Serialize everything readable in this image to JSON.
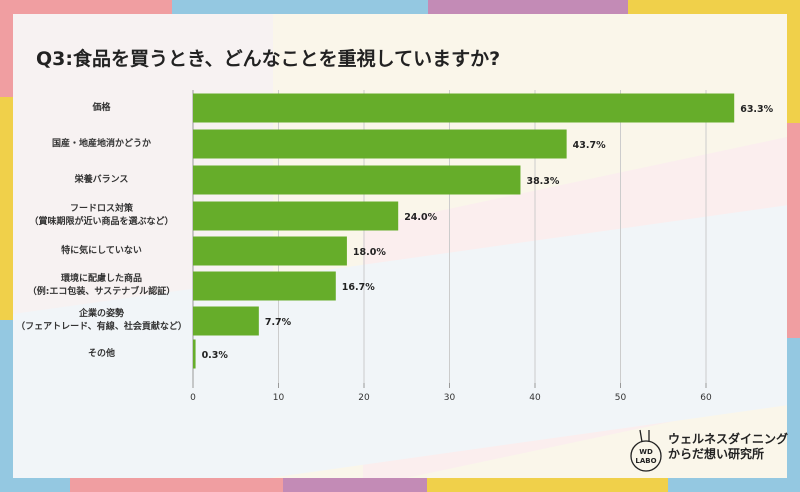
{
  "title": "Q3:食品を買うとき、どんなことを重視していますか?",
  "colors": {
    "bar": "#66ad2a",
    "pink": "#f09ea1",
    "blue": "#94c8e1",
    "purple": "#c38bb6",
    "yellow": "#f0d04a"
  },
  "chart_data": {
    "type": "bar",
    "orientation": "horizontal",
    "categories": [
      "価格",
      "国産・地産地消かどうか",
      "栄養バランス",
      "フードロス対策\n（賞味期限が近い商品を選ぶなど）",
      "特に気にしていない",
      "環境に配慮した商品\n（例:エコ包装、サステナブル認証）",
      "企業の姿勢\n（フェアトレード、有線、社会貢献など）",
      "その他"
    ],
    "values": [
      63.3,
      43.7,
      38.3,
      24.0,
      18.0,
      16.7,
      7.7,
      0.3
    ],
    "data_labels": [
      "63.3%",
      "43.7%",
      "38.3%",
      "24.0%",
      "18.0%",
      "16.7%",
      "7.7%",
      "0.3%"
    ],
    "xlim": [
      0,
      65
    ],
    "xticks": [
      "0",
      "10",
      "20",
      "30",
      "40",
      "50",
      "60"
    ],
    "grid": true,
    "unit": "%"
  },
  "logo": {
    "badge": "WD LABO",
    "line1": "ウェルネスダイニング",
    "line2": "からだ想い研究所"
  }
}
